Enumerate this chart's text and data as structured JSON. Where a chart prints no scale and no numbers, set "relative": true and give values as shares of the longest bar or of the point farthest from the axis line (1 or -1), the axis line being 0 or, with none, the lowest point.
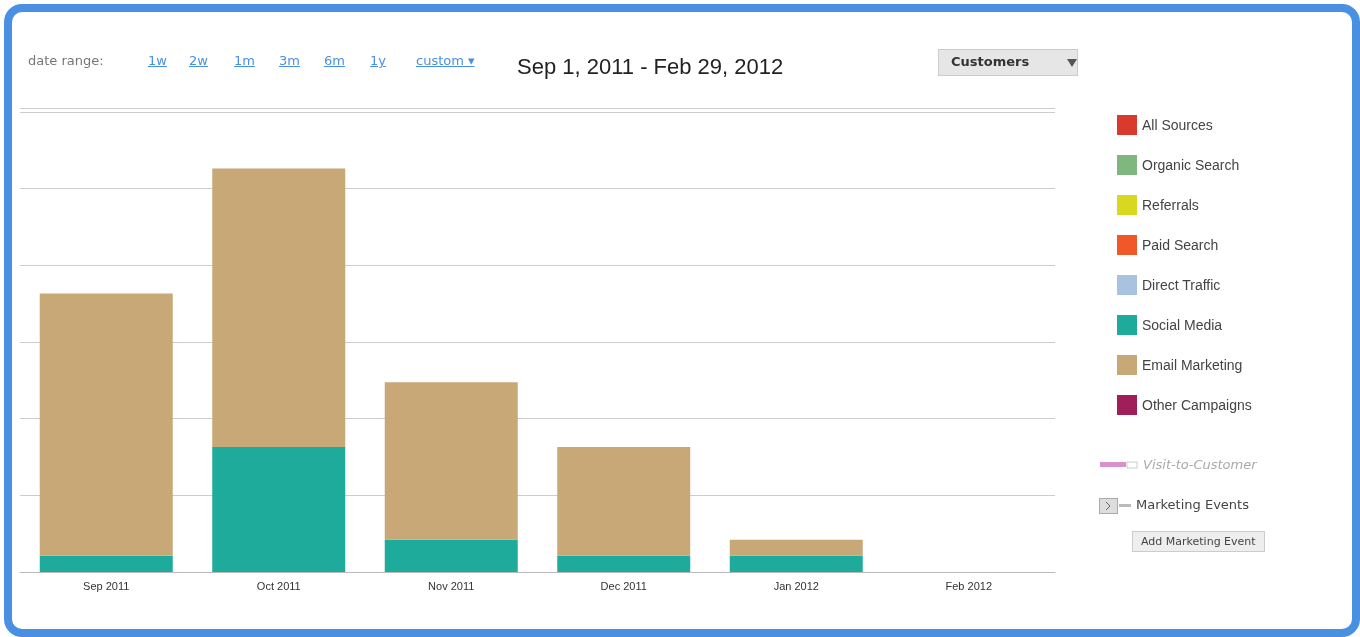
{
  "chart_data": {
    "type": "bar",
    "title": "Sep 1, 2011 - Feb 29, 2012",
    "categories": [
      "Sep 2011",
      "Oct 2011",
      "Nov 2011",
      "Dec 2011",
      "Jan 2012",
      "Feb 2012"
    ],
    "relative": true,
    "stacked": true,
    "grid": "y",
    "legend": "right",
    "series": [
      {
        "name": "All Sources",
        "color": "#d93a2b",
        "values": [
          null,
          null,
          null,
          null,
          null,
          null
        ]
      },
      {
        "name": "Organic Search",
        "color": "#7fb77f",
        "values": [
          null,
          null,
          null,
          null,
          null,
          null
        ]
      },
      {
        "name": "Referrals",
        "color": "#d8d820",
        "values": [
          null,
          null,
          null,
          null,
          null,
          null
        ]
      },
      {
        "name": "Paid Search",
        "color": "#f0582a",
        "values": [
          null,
          null,
          null,
          null,
          null,
          null
        ]
      },
      {
        "name": "Direct Traffic",
        "color": "#a8c2e0",
        "values": [
          null,
          null,
          null,
          null,
          null,
          null
        ]
      },
      {
        "name": "Social Media",
        "color": "#1fab9c",
        "values": [
          0.04,
          0.31,
          0.08,
          0.04,
          0.04,
          0
        ]
      },
      {
        "name": "Email Marketing",
        "color": "#c9a878",
        "values": [
          0.65,
          0.69,
          0.39,
          0.27,
          0.04,
          0
        ]
      },
      {
        "name": "Other Campaigns",
        "color": "#a01f5a",
        "values": [
          null,
          null,
          null,
          null,
          null,
          null
        ]
      }
    ],
    "annotations": [
      "date range:",
      "1w",
      "2w",
      "1m",
      "3m",
      "6m",
      "1y",
      "custom ▾",
      "Customers",
      "Visit-to-Customer",
      "Marketing Events",
      "Add Marketing Event"
    ]
  }
}
